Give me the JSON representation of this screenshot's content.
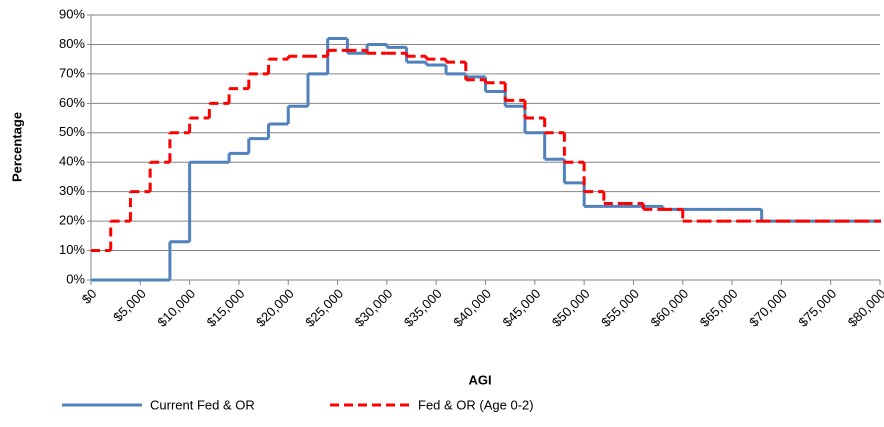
{
  "chart_data": {
    "type": "line",
    "step": "post",
    "xlabel": "AGI",
    "ylabel": "Percentage",
    "x": [
      0,
      2000,
      4000,
      6000,
      8000,
      10000,
      12000,
      14000,
      16000,
      18000,
      20000,
      22000,
      24000,
      26000,
      28000,
      30000,
      32000,
      34000,
      36000,
      38000,
      40000,
      42000,
      44000,
      46000,
      48000,
      50000,
      52000,
      54000,
      56000,
      58000,
      60000,
      62000,
      64000,
      66000,
      68000,
      70000,
      72000,
      74000,
      76000,
      78000,
      80000
    ],
    "series": [
      {
        "name": "Current Fed & OR",
        "color": "#4f81bd",
        "dash": false,
        "values": [
          0,
          0,
          0,
          0,
          13,
          40,
          40,
          43,
          48,
          53,
          59,
          70,
          82,
          77,
          80,
          79,
          74,
          73,
          70,
          69,
          64,
          59,
          50,
          41,
          33,
          25,
          25,
          25,
          25,
          24,
          24,
          24,
          24,
          24,
          20,
          20,
          20,
          20,
          20,
          20,
          20
        ]
      },
      {
        "name": "Fed & OR (Age 0-2)",
        "color": "#ff0000",
        "dash": true,
        "values": [
          10,
          20,
          30,
          40,
          50,
          55,
          60,
          65,
          70,
          75,
          76,
          76,
          78,
          78,
          77,
          77,
          76,
          75,
          74,
          68,
          67,
          61,
          55,
          50,
          40,
          30,
          26,
          26,
          24,
          24,
          20,
          20,
          20,
          20,
          20,
          20,
          20,
          20,
          20,
          20,
          20
        ]
      }
    ],
    "xlim": [
      0,
      80000
    ],
    "xticks": [
      {
        "value": 0,
        "label": "$0"
      },
      {
        "value": 5000,
        "label": "$5,000"
      },
      {
        "value": 10000,
        "label": "$10,000"
      },
      {
        "value": 15000,
        "label": "$15,000"
      },
      {
        "value": 20000,
        "label": "$20,000"
      },
      {
        "value": 25000,
        "label": "$25,000"
      },
      {
        "value": 30000,
        "label": "$30,000"
      },
      {
        "value": 35000,
        "label": "$35,000"
      },
      {
        "value": 40000,
        "label": "$40,000"
      },
      {
        "value": 45000,
        "label": "$45,000"
      },
      {
        "value": 50000,
        "label": "$50,000"
      },
      {
        "value": 55000,
        "label": "$55,000"
      },
      {
        "value": 60000,
        "label": "$60,000"
      },
      {
        "value": 65000,
        "label": "$65,000"
      },
      {
        "value": 70000,
        "label": "$70,000"
      },
      {
        "value": 75000,
        "label": "$75,000"
      },
      {
        "value": 80000,
        "label": "$80,000"
      }
    ],
    "ylim": [
      0,
      90
    ],
    "yticks": [
      {
        "value": 0,
        "label": "0%"
      },
      {
        "value": 10,
        "label": "10%"
      },
      {
        "value": 20,
        "label": "20%"
      },
      {
        "value": 30,
        "label": "30%"
      },
      {
        "value": 40,
        "label": "40%"
      },
      {
        "value": 50,
        "label": "50%"
      },
      {
        "value": 60,
        "label": "60%"
      },
      {
        "value": 70,
        "label": "70%"
      },
      {
        "value": 80,
        "label": "80%"
      },
      {
        "value": 90,
        "label": "90%"
      }
    ],
    "grid": true,
    "legend": "bottom"
  }
}
